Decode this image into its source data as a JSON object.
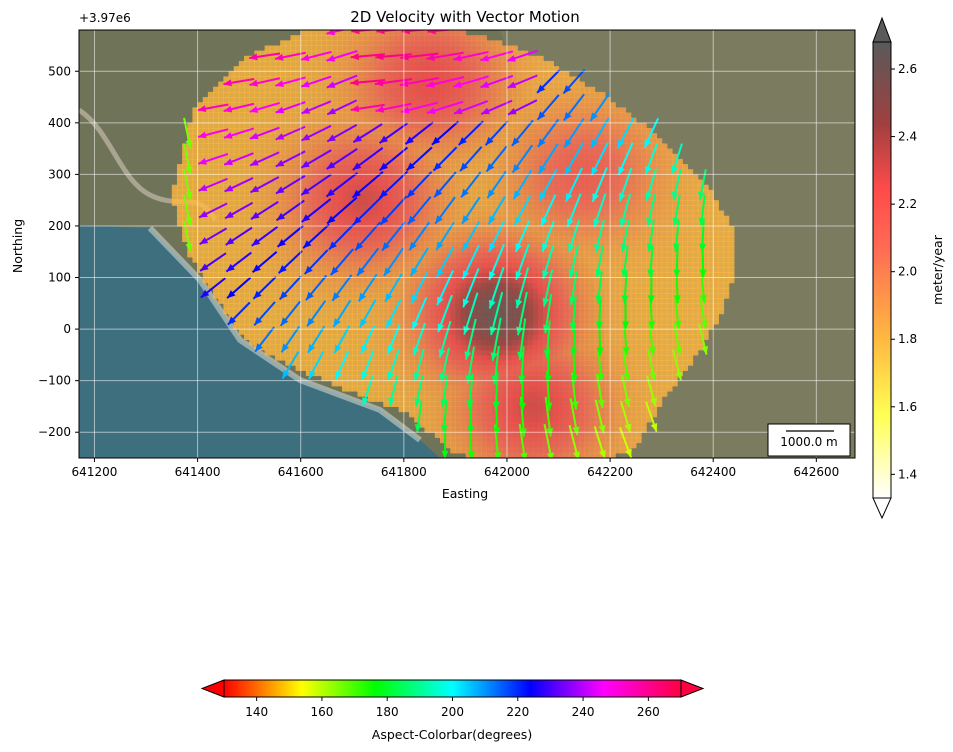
{
  "chart_data": {
    "type": "heatmap",
    "title": "2D Velocity with Vector Motion",
    "xlabel": "Easting",
    "ylabel": "Northing",
    "y_offset_label": "+3.97e6",
    "xlim": [
      641170,
      642675
    ],
    "ylim": [
      -250,
      580
    ],
    "x_ticks": [
      641200,
      641400,
      641600,
      641800,
      642000,
      642200,
      642400,
      642600
    ],
    "y_ticks": [
      -200,
      -100,
      0,
      100,
      200,
      300,
      400,
      500
    ],
    "grid": true,
    "basemap": "satellite imagery",
    "scalebar_label": "1000.0 m",
    "velocity_colorbar": {
      "label": "meter/year",
      "range": [
        1.33,
        2.68
      ],
      "ticks": [
        1.4,
        1.6,
        1.8,
        2.0,
        2.2,
        2.4,
        2.6
      ],
      "extend": "both",
      "colormap": "hot_r (white-yellow-orange-red-dark)"
    },
    "aspect_colorbar": {
      "label": "Aspect-Colorbar(degrees)",
      "range": [
        130,
        270
      ],
      "ticks": [
        140,
        160,
        180,
        200,
        220,
        240,
        260
      ],
      "extend": "both",
      "colormap": "hsv"
    },
    "velocity_field": {
      "description": "gridded velocity magnitude (m/yr) over landslide area",
      "peaks": [
        {
          "x": 641980,
          "y": 30,
          "value": 2.6
        },
        {
          "x": 641720,
          "y": 250,
          "value": 2.3
        },
        {
          "x": 641850,
          "y": 480,
          "value": 2.25
        },
        {
          "x": 642150,
          "y": 300,
          "value": 2.15
        },
        {
          "x": 642050,
          "y": -150,
          "value": 2.3
        }
      ],
      "edge_value": 1.8,
      "east_value": 1.45
    },
    "vector_grid": {
      "x_start": 641380,
      "x_step": 50,
      "y_start": -220,
      "y_step": 50,
      "notes": "vectors colored by aspect in degrees; lengths ~ velocity"
    }
  }
}
